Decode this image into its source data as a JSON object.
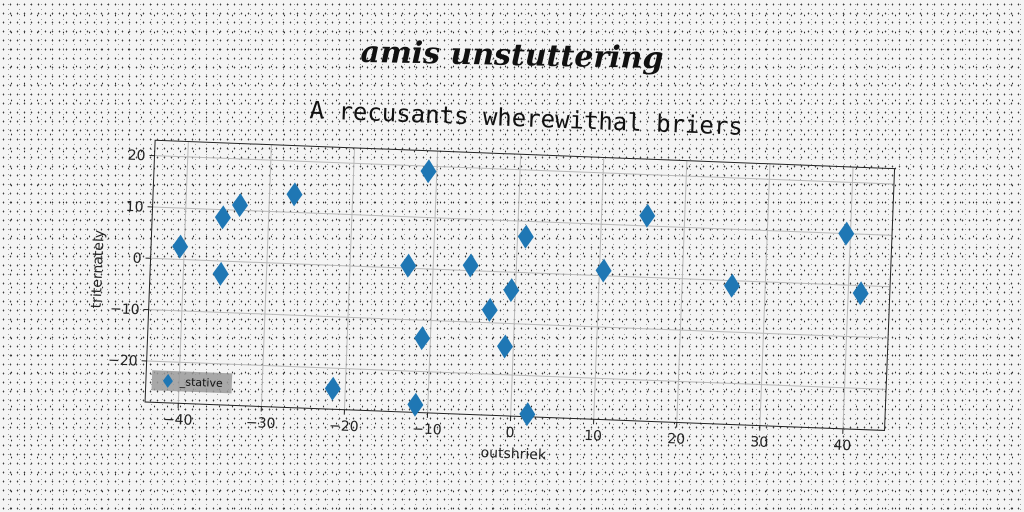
{
  "heading": "amis unstuttering",
  "chart_data": {
    "type": "scatter",
    "title": "A recusants wherewithal briers",
    "xlabel": "outshriek",
    "ylabel": "triternately",
    "xlim": [
      -44,
      45
    ],
    "ylim": [
      -28,
      23
    ],
    "xticks": [
      -40,
      -30,
      -20,
      -10,
      0,
      10,
      20,
      30,
      40
    ],
    "yticks": [
      -20,
      -10,
      0,
      10,
      20
    ],
    "grid": true,
    "legend_position": "bottom-left",
    "marker": "diamond",
    "color": "#1f77b4",
    "series": [
      {
        "name": "_stative",
        "points": [
          {
            "x": -40.5,
            "y": 2.5
          },
          {
            "x": -35.5,
            "y": 8.5
          },
          {
            "x": -33.5,
            "y": 11
          },
          {
            "x": -35.5,
            "y": -2.5
          },
          {
            "x": -27,
            "y": 13.5
          },
          {
            "x": -11,
            "y": 19
          },
          {
            "x": -13,
            "y": 0.5
          },
          {
            "x": -11,
            "y": -13.5
          },
          {
            "x": -21.5,
            "y": -24
          },
          {
            "x": -11.5,
            "y": -26.5
          },
          {
            "x": -5.5,
            "y": 1
          },
          {
            "x": -3,
            "y": -7.5
          },
          {
            "x": -1,
            "y": -14.5
          },
          {
            "x": -0.5,
            "y": -3.5
          },
          {
            "x": 1,
            "y": 7
          },
          {
            "x": 2,
            "y": -27.5
          },
          {
            "x": 10.5,
            "y": 1
          },
          {
            "x": 15.5,
            "y": 12
          },
          {
            "x": 26,
            "y": -1
          },
          {
            "x": 39.5,
            "y": 10
          },
          {
            "x": 41.5,
            "y": -1.5
          }
        ]
      }
    ]
  }
}
